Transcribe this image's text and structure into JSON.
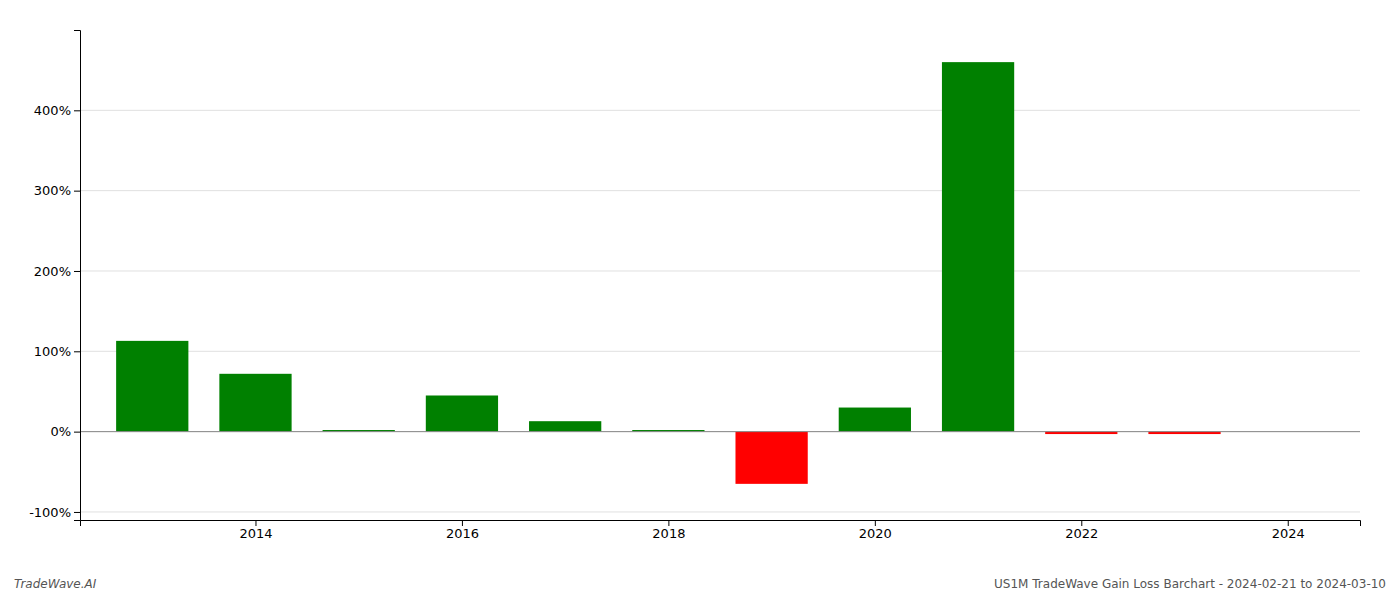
{
  "chart_data": {
    "type": "bar",
    "x": [
      2013,
      2014,
      2015,
      2016,
      2017,
      2018,
      2019,
      2020,
      2021,
      2022,
      2023
    ],
    "values": [
      1.13,
      0.72,
      0.02,
      0.45,
      0.13,
      0.02,
      -0.65,
      0.3,
      4.6,
      -0.03,
      -0.03
    ],
    "colors": [
      "#008000",
      "#008000",
      "#008000",
      "#008000",
      "#008000",
      "#008000",
      "#ff0000",
      "#008000",
      "#008000",
      "#ff0000",
      "#ff0000"
    ],
    "xlim": [
      2012.3,
      2024.7
    ],
    "xticks": [
      2014,
      2016,
      2018,
      2020,
      2022,
      2024
    ],
    "ylim": [
      -1.1,
      5.0
    ],
    "yticks": [
      {
        "value": -1.0,
        "label": "-100%"
      },
      {
        "value": 0.0,
        "label": "0%"
      },
      {
        "value": 1.0,
        "label": "100%"
      },
      {
        "value": 2.0,
        "label": "200%"
      },
      {
        "value": 3.0,
        "label": "300%"
      },
      {
        "value": 4.0,
        "label": "400%"
      }
    ],
    "grid": true,
    "annotations": [
      "TradeWave.AI",
      "US1M TradeWave Gain Loss Barchart - 2024-02-21 to 2024-03-10"
    ]
  }
}
